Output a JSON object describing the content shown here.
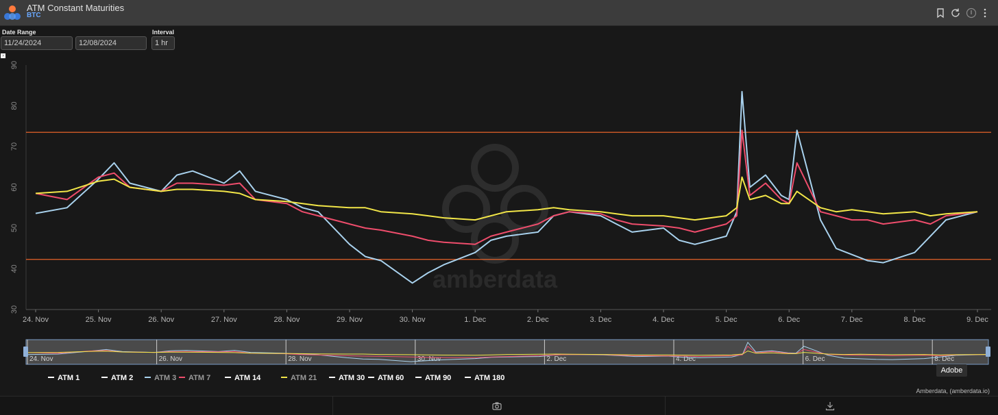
{
  "header": {
    "title": "ATM Constant Maturities",
    "subtitle": "BTC"
  },
  "controls": {
    "date_range_label": "Date Range",
    "start_date": "11/24/2024",
    "end_date": "12/08/2024",
    "interval_label": "Interval",
    "interval": "1 hr"
  },
  "legend": [
    {
      "name": "ATM 1",
      "color": "#ffffff",
      "text_color": "#ffffff"
    },
    {
      "name": "ATM 2",
      "color": "#ffffff",
      "text_color": "#ffffff"
    },
    {
      "name": "ATM 3",
      "color": "#a9d2ee",
      "text_color": "#9a9a9a"
    },
    {
      "name": "ATM 7",
      "color": "#ef4d6c",
      "text_color": "#9a9a9a"
    },
    {
      "name": "ATM 14",
      "color": "#ffffff",
      "text_color": "#ffffff"
    },
    {
      "name": "ATM 21",
      "color": "#f2e648",
      "text_color": "#9a9a9a"
    },
    {
      "name": "ATM 30",
      "color": "#ffffff",
      "text_color": "#ffffff"
    },
    {
      "name": "ATM 60",
      "color": "#ffffff",
      "text_color": "#ffffff"
    },
    {
      "name": "ATM 90",
      "color": "#ffffff",
      "text_color": "#ffffff"
    },
    {
      "name": "ATM 180",
      "color": "#ffffff",
      "text_color": "#ffffff"
    }
  ],
  "tooltip": "Adobe",
  "credits": "Amberdata, (amberdata.io)",
  "chart_data": {
    "type": "line",
    "ylim": [
      30,
      90
    ],
    "y_ticks": [
      30,
      40,
      50,
      60,
      70,
      80,
      90
    ],
    "x_range": [
      "2024-11-24",
      "2024-12-09"
    ],
    "x_ticks": [
      "24. Nov",
      "25. Nov",
      "26. Nov",
      "27. Nov",
      "28. Nov",
      "29. Nov",
      "30. Nov",
      "1. Dec",
      "2. Dec",
      "3. Dec",
      "4. Dec",
      "5. Dec",
      "6. Dec",
      "7. Dec",
      "8. Dec",
      "9. Dec"
    ],
    "navigator_ticks": [
      "24. Nov",
      "26. Nov",
      "28. Nov",
      "30. Nov",
      "2. Dec",
      "4. Dec",
      "6. Dec",
      "8. Dec"
    ],
    "plot_lines": [
      {
        "value": 73.5,
        "color": "#ff6a2a"
      },
      {
        "value": 42.3,
        "color": "#ff6a2a"
      }
    ],
    "series": [
      {
        "name": "ATM 3",
        "color": "#a9d2ee",
        "x": [
          "2024-11-24",
          "2024-11-24T12:00",
          "2024-11-25",
          "2024-11-25T06:00",
          "2024-11-25T12:00",
          "2024-11-26",
          "2024-11-26T06:00",
          "2024-11-26T12:00",
          "2024-11-27",
          "2024-11-27T06:00",
          "2024-11-27T12:00",
          "2024-11-28",
          "2024-11-28T06:00",
          "2024-11-28T12:00",
          "2024-11-29",
          "2024-11-29T06:00",
          "2024-11-29T12:00",
          "2024-11-30",
          "2024-11-30T06:00",
          "2024-11-30T12:00",
          "2024-12-01",
          "2024-12-01T06:00",
          "2024-12-01T12:00",
          "2024-12-02",
          "2024-12-02T06:00",
          "2024-12-02T12:00",
          "2024-12-03",
          "2024-12-03T06:00",
          "2024-12-03T12:00",
          "2024-12-04",
          "2024-12-04T06:00",
          "2024-12-04T12:00",
          "2024-12-05",
          "2024-12-05T04:00",
          "2024-12-05T06:00",
          "2024-12-05T09:00",
          "2024-12-05T15:00",
          "2024-12-05T21:00",
          "2024-12-06",
          "2024-12-06T03:00",
          "2024-12-06T12:00",
          "2024-12-06T18:00",
          "2024-12-07",
          "2024-12-07T06:00",
          "2024-12-07T12:00",
          "2024-12-08",
          "2024-12-08T06:00",
          "2024-12-08T12:00",
          "2024-12-09"
        ],
        "y": [
          53.6,
          55,
          62,
          66,
          61,
          59,
          63,
          64,
          61,
          64,
          59,
          57,
          55,
          54,
          46,
          43,
          42,
          36.5,
          39,
          41,
          44,
          47,
          48,
          49,
          53,
          54,
          53,
          51,
          49,
          50,
          47,
          46,
          48,
          54,
          83.5,
          60,
          63,
          58,
          57,
          74,
          52,
          45,
          43.5,
          42,
          41.5,
          44,
          48,
          52,
          54
        ]
      },
      {
        "name": "ATM 7",
        "color": "#ef4d6c",
        "x": [
          "2024-11-24",
          "2024-11-24T12:00",
          "2024-11-25",
          "2024-11-25T06:00",
          "2024-11-25T12:00",
          "2024-11-26",
          "2024-11-26T06:00",
          "2024-11-26T12:00",
          "2024-11-27",
          "2024-11-27T06:00",
          "2024-11-27T12:00",
          "2024-11-28",
          "2024-11-28T06:00",
          "2024-11-28T12:00",
          "2024-11-29",
          "2024-11-29T06:00",
          "2024-11-29T12:00",
          "2024-11-30",
          "2024-11-30T06:00",
          "2024-11-30T12:00",
          "2024-12-01",
          "2024-12-01T06:00",
          "2024-12-01T12:00",
          "2024-12-02",
          "2024-12-02T06:00",
          "2024-12-02T12:00",
          "2024-12-03",
          "2024-12-03T06:00",
          "2024-12-03T12:00",
          "2024-12-04",
          "2024-12-04T06:00",
          "2024-12-04T12:00",
          "2024-12-05",
          "2024-12-05T04:00",
          "2024-12-05T06:00",
          "2024-12-05T09:00",
          "2024-12-05T15:00",
          "2024-12-05T21:00",
          "2024-12-06",
          "2024-12-06T03:00",
          "2024-12-06T12:00",
          "2024-12-06T18:00",
          "2024-12-07",
          "2024-12-07T06:00",
          "2024-12-07T12:00",
          "2024-12-08",
          "2024-12-08T06:00",
          "2024-12-08T12:00",
          "2024-12-09"
        ],
        "y": [
          58.5,
          57,
          62.5,
          63.5,
          60,
          59,
          61,
          61,
          60.5,
          61,
          57,
          56,
          54,
          53,
          51,
          50,
          49.5,
          48,
          47,
          46.5,
          46,
          48,
          49,
          51,
          53,
          54,
          53.5,
          52,
          51,
          50.5,
          50,
          49,
          51,
          53,
          74,
          58,
          61,
          57,
          56,
          66,
          54,
          53,
          52,
          52,
          51,
          52,
          51,
          53,
          54
        ]
      },
      {
        "name": "ATM 21",
        "color": "#f2e648",
        "x": [
          "2024-11-24",
          "2024-11-24T12:00",
          "2024-11-25",
          "2024-11-25T06:00",
          "2024-11-25T12:00",
          "2024-11-26",
          "2024-11-26T06:00",
          "2024-11-26T12:00",
          "2024-11-27",
          "2024-11-27T06:00",
          "2024-11-27T12:00",
          "2024-11-28",
          "2024-11-28T06:00",
          "2024-11-28T12:00",
          "2024-11-29",
          "2024-11-29T06:00",
          "2024-11-29T12:00",
          "2024-11-30",
          "2024-11-30T06:00",
          "2024-11-30T12:00",
          "2024-12-01",
          "2024-12-01T06:00",
          "2024-12-01T12:00",
          "2024-12-02",
          "2024-12-02T06:00",
          "2024-12-02T12:00",
          "2024-12-03",
          "2024-12-03T06:00",
          "2024-12-03T12:00",
          "2024-12-04",
          "2024-12-04T06:00",
          "2024-12-04T12:00",
          "2024-12-05",
          "2024-12-05T04:00",
          "2024-12-05T06:00",
          "2024-12-05T09:00",
          "2024-12-05T15:00",
          "2024-12-05T21:00",
          "2024-12-06",
          "2024-12-06T03:00",
          "2024-12-06T12:00",
          "2024-12-06T18:00",
          "2024-12-07",
          "2024-12-07T06:00",
          "2024-12-07T12:00",
          "2024-12-08",
          "2024-12-08T06:00",
          "2024-12-08T12:00",
          "2024-12-09"
        ],
        "y": [
          58.5,
          59,
          61.5,
          62,
          60,
          59,
          59.5,
          59.5,
          59,
          58.5,
          57,
          56.5,
          56,
          55.5,
          55,
          55,
          54,
          53.5,
          53,
          52.5,
          52,
          53,
          54,
          54.5,
          55,
          54.5,
          54,
          53.5,
          53,
          53,
          52.5,
          52,
          53,
          55,
          62.5,
          57,
          58,
          56,
          56,
          59,
          55,
          54,
          54.5,
          54,
          53.5,
          54,
          53,
          53.5,
          54
        ]
      }
    ]
  }
}
